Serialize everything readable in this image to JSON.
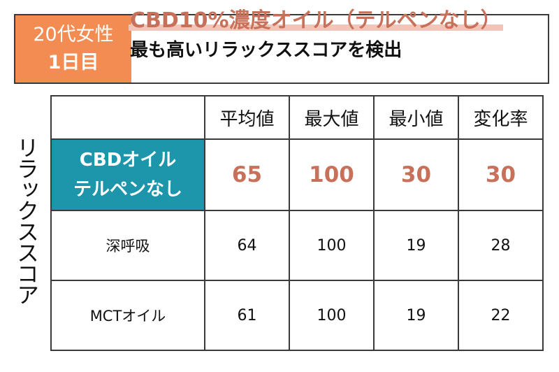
{
  "header": {
    "badge_line1": "20代女性",
    "badge_line2": "1日目",
    "title": "CBD10%濃度オイル（テルペンなし）",
    "subtitle": "最も高いリラックススコアを検出"
  },
  "colors": {
    "badge": "#f28c52",
    "title": "#c8715a",
    "title_highlight": "#f3c5b8",
    "highlight_cell": "#1d95ab",
    "highlight_value": "#c8715a"
  },
  "chart_data": {
    "type": "table",
    "row_axis_label": "リラックススコア",
    "columns": [
      "平均値",
      "最大値",
      "最小値",
      "変化率"
    ],
    "rows": [
      {
        "label_line1": "CBDオイル",
        "label_line2": "テルペンなし",
        "values": [
          65,
          100,
          30,
          30
        ],
        "highlighted": true
      },
      {
        "label": "深呼吸",
        "values": [
          64,
          100,
          19,
          28
        ],
        "highlighted": false
      },
      {
        "label": "MCTオイル",
        "values": [
          61,
          100,
          19,
          22
        ],
        "highlighted": false
      }
    ]
  }
}
